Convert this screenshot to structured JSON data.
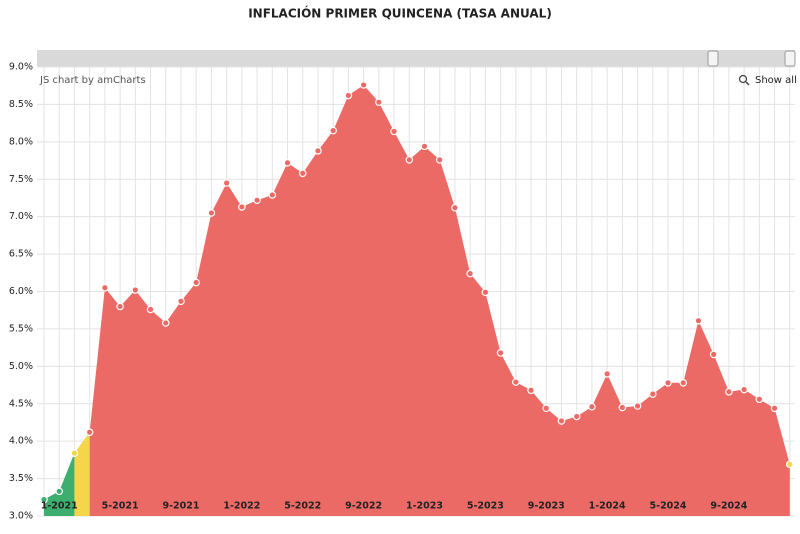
{
  "chart_data": {
    "type": "area",
    "title": "INFLACIÓN PRIMER QUINCENA (TASA ANUAL)",
    "credit": "JS chart by amCharts",
    "button": "Show all",
    "categories": [
      null,
      "1-2021",
      null,
      null,
      null,
      "5-2021",
      null,
      null,
      null,
      "9-2021",
      null,
      null,
      null,
      "1-2022",
      null,
      null,
      null,
      "5-2022",
      null,
      null,
      null,
      "9-2022",
      null,
      null,
      null,
      "1-2023",
      null,
      null,
      null,
      "5-2023",
      null,
      null,
      null,
      "9-2023",
      null,
      null,
      null,
      "1-2024",
      null,
      null,
      null,
      "5-2024",
      null,
      null,
      null,
      "9-2024",
      null,
      null,
      null,
      null
    ],
    "values": [
      3.22,
      3.33,
      3.84,
      4.12,
      6.05,
      5.8,
      6.02,
      5.76,
      5.58,
      5.87,
      6.12,
      7.05,
      7.45,
      7.13,
      7.22,
      7.29,
      7.72,
      7.58,
      7.88,
      8.15,
      8.62,
      8.76,
      8.53,
      8.14,
      7.76,
      7.94,
      7.76,
      7.12,
      6.24,
      5.99,
      5.18,
      4.79,
      4.68,
      4.44,
      4.27,
      4.33,
      4.46,
      4.9,
      4.45,
      4.47,
      4.63,
      4.78,
      4.78,
      5.61,
      5.16,
      4.66,
      4.69,
      4.56,
      4.44,
      3.69
    ],
    "thresholds": [
      3.5,
      4
    ],
    "colors": [
      "#3eae6f",
      "#f5d54a",
      "#ec6a66"
    ],
    "ylim": [
      3,
      9
    ],
    "yticks": [
      {
        "value": 3,
        "label": "3.0%"
      },
      {
        "value": 3.5,
        "label": "3.5%"
      },
      {
        "value": 4,
        "label": "4.0%"
      },
      {
        "value": 4.5,
        "label": "4.5%"
      },
      {
        "value": 5,
        "label": "5.0%"
      },
      {
        "value": 5.5,
        "label": "5.5%"
      },
      {
        "value": 6,
        "label": "6.0%"
      },
      {
        "value": 6.5,
        "label": "6.5%"
      },
      {
        "value": 7,
        "label": "7.0%"
      },
      {
        "value": 7.5,
        "label": "7.5%"
      },
      {
        "value": 8,
        "label": "8.0%"
      },
      {
        "value": 8.5,
        "label": "8.5%"
      },
      {
        "value": 9,
        "label": "9.0%"
      }
    ],
    "grid": true
  }
}
